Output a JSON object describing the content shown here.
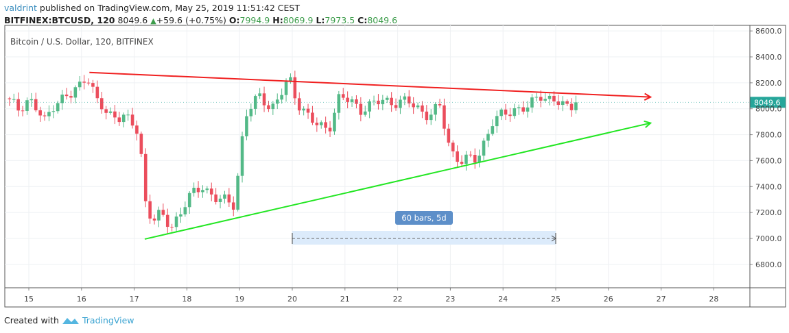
{
  "header": {
    "user": "valdrint",
    "published": "published on TradingView.com, May 25, 2019 11:51:42 CEST",
    "symbol": "BITFINEX:BTCUSD, 120",
    "last": "8049.6",
    "change": "+59.6 (+0.75%)",
    "o_label": "O:",
    "o": "7994.9",
    "h_label": "H:",
    "h": "8069.9",
    "l_label": "L:",
    "l": "7973.5",
    "c_label": "C:",
    "c": "8049.6"
  },
  "footer": {
    "created_with": "Created with",
    "brand": "TradingView"
  },
  "colors": {
    "up": "#53b987",
    "down": "#eb4d5c",
    "resistance": "#f02020",
    "support": "#22e622",
    "last_price": "#26a69a",
    "measure": "#5d8fc9"
  },
  "chart_data": {
    "type": "candlestick",
    "title": "Bitcoin / U.S. Dollar, 120, BITFINEX",
    "interval_minutes": 120,
    "ylim": [
      6600,
      8600
    ],
    "y_ticks": [
      6800,
      7000,
      7200,
      7400,
      7600,
      7800,
      8000,
      8200,
      8400,
      8600
    ],
    "y_tick_labels": [
      "6800.0",
      "7000.0",
      "7200.0",
      "7400.0",
      "7600.0",
      "7800.0",
      "8000.0",
      "8200.0",
      "8400.0",
      "8600.0"
    ],
    "xlim": [
      14.55,
      28.7
    ],
    "x_ticks": [
      15,
      16,
      17,
      18,
      19,
      20,
      21,
      22,
      23,
      24,
      25,
      26,
      27,
      28
    ],
    "x_tick_labels": [
      "15",
      "16",
      "17",
      "18",
      "19",
      "20",
      "21",
      "22",
      "23",
      "24",
      "25",
      "26",
      "27",
      "28"
    ],
    "last_price_label": "8049.6",
    "close_path": [
      [
        14.55,
        8080
      ],
      [
        14.8,
        8000
      ],
      [
        15.0,
        8080
      ],
      [
        15.3,
        7900
      ],
      [
        15.5,
        8060
      ],
      [
        15.8,
        8100
      ],
      [
        16.0,
        8200
      ],
      [
        16.1,
        8280
      ],
      [
        16.3,
        8050
      ],
      [
        16.5,
        7950
      ],
      [
        16.8,
        7950
      ],
      [
        17.1,
        7800
      ],
      [
        17.2,
        7300
      ],
      [
        17.35,
        7150
      ],
      [
        17.5,
        7180
      ],
      [
        17.7,
        7080
      ],
      [
        18.0,
        7300
      ],
      [
        18.3,
        7400
      ],
      [
        18.6,
        7300
      ],
      [
        18.9,
        7260
      ],
      [
        19.0,
        7600
      ],
      [
        19.1,
        7950
      ],
      [
        19.4,
        8100
      ],
      [
        19.6,
        8000
      ],
      [
        19.95,
        8220
      ],
      [
        20.1,
        8050
      ],
      [
        20.5,
        7850
      ],
      [
        20.7,
        7860
      ],
      [
        20.9,
        8100
      ],
      [
        21.3,
        8000
      ],
      [
        21.7,
        8060
      ],
      [
        22.2,
        8050
      ],
      [
        22.6,
        7950
      ],
      [
        22.8,
        8010
      ],
      [
        23.0,
        7680
      ],
      [
        23.2,
        7600
      ],
      [
        23.5,
        7610
      ],
      [
        23.8,
        7900
      ],
      [
        24.2,
        8000
      ],
      [
        24.5,
        8010
      ],
      [
        24.7,
        8110
      ],
      [
        25.0,
        8060
      ],
      [
        25.2,
        8000
      ],
      [
        25.4,
        8049.6
      ]
    ],
    "trendlines": [
      {
        "name": "resistance",
        "from": [
          16.15,
          8280
        ],
        "to": [
          26.8,
          8090
        ]
      },
      {
        "name": "support",
        "from": [
          17.2,
          6995
        ],
        "to": [
          26.8,
          7890
        ]
      }
    ],
    "measure": {
      "from": [
        20,
        7000
      ],
      "to": [
        25,
        7000
      ],
      "label": "60 bars, 5d"
    }
  }
}
